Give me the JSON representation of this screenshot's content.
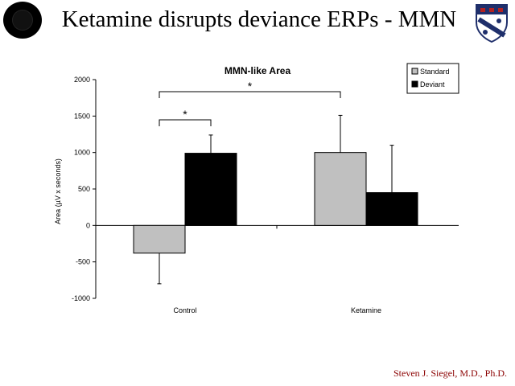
{
  "slide": {
    "title": "Ketamine disrupts deviance ERPs - MMN",
    "footer": "Steven J. Siegel, M.D., Ph.D.",
    "left_logo_icon": "university-seal-icon",
    "right_logo_icon": "penn-shield-icon"
  },
  "chart_data": {
    "type": "bar",
    "title": "MMN-like Area",
    "ylabel": "Area (µV x seconds)",
    "xlabel": "",
    "categories": [
      "Control",
      "Ketamine"
    ],
    "series": [
      {
        "name": "Standard",
        "values": [
          -380,
          1000
        ],
        "errors": [
          420,
          510
        ],
        "color": "#c0c0c0"
      },
      {
        "name": "Deviant",
        "values": [
          990,
          450
        ],
        "errors": [
          250,
          650
        ],
        "color": "#000000"
      }
    ],
    "ylim": [
      -1000,
      2000
    ],
    "yticks": [
      -1000,
      -500,
      0,
      500,
      1000,
      1500,
      2000
    ],
    "legend_position": "top-right",
    "grid": false,
    "annotations": [
      {
        "text": "*",
        "from": "Control Standard",
        "to": "Control Deviant"
      },
      {
        "text": "*",
        "from": "Control Standard",
        "to": "Ketamine Standard"
      }
    ]
  }
}
